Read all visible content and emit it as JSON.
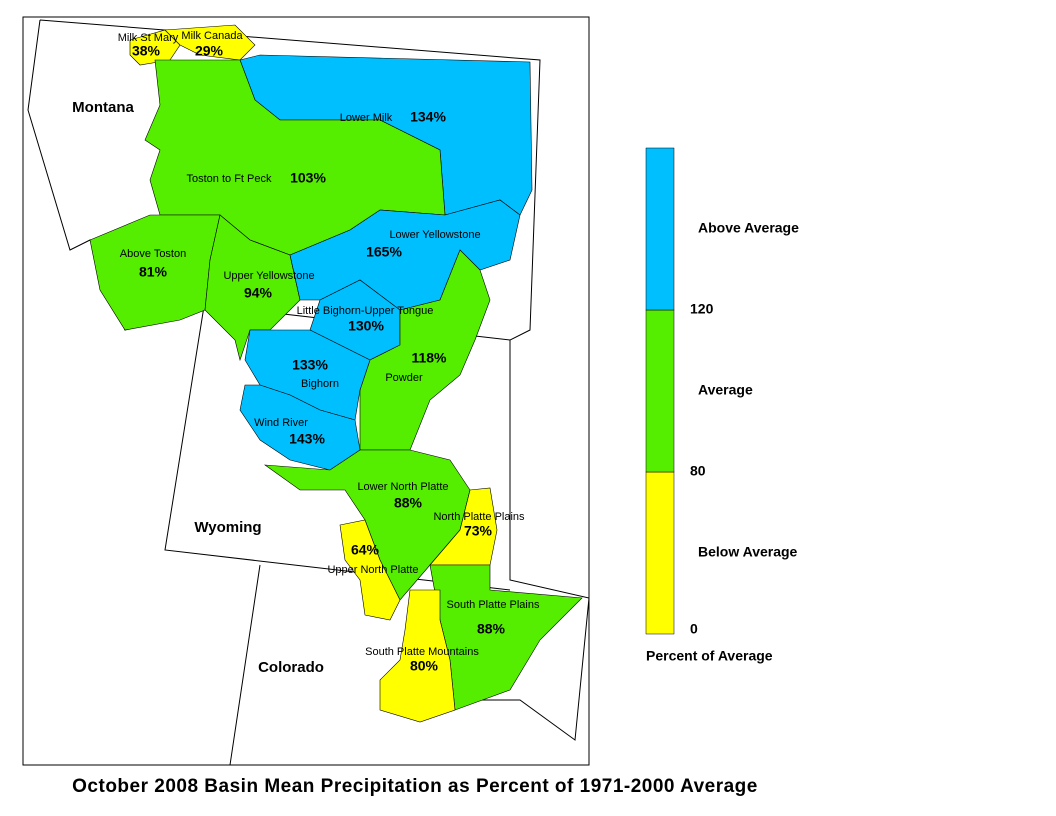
{
  "title": "October 2008 Basin Mean Precipitation as Percent of 1971-2000 Average",
  "states": [
    "Montana",
    "Wyoming",
    "Colorado"
  ],
  "basins": [
    {
      "name": "Milk St Mary",
      "value": 38,
      "value_label": "38%"
    },
    {
      "name": "Milk Canada",
      "value": 29,
      "value_label": "29%"
    },
    {
      "name": "Lower Milk",
      "value": 134,
      "value_label": "134%"
    },
    {
      "name": "Toston to Ft Peck",
      "value": 103,
      "value_label": "103%"
    },
    {
      "name": "Above Toston",
      "value": 81,
      "value_label": "81%"
    },
    {
      "name": "Upper Yellowstone",
      "value": 94,
      "value_label": "94%"
    },
    {
      "name": "Lower Yellowstone",
      "value": 165,
      "value_label": "165%"
    },
    {
      "name": "Little Bighorn-Upper Tongue",
      "value": 130,
      "value_label": "130%"
    },
    {
      "name": "Powder",
      "value": 118,
      "value_label": "118%"
    },
    {
      "name": "Bighorn",
      "value": 133,
      "value_label": "133%"
    },
    {
      "name": "Wind River",
      "value": 143,
      "value_label": "143%"
    },
    {
      "name": "Lower North Platte",
      "value": 88,
      "value_label": "88%"
    },
    {
      "name": "North Platte Plains",
      "value": 73,
      "value_label": "73%"
    },
    {
      "name": "Upper North Platte",
      "value": 64,
      "value_label": "64%"
    },
    {
      "name": "South Platte Plains",
      "value": 88,
      "value_label": "88%"
    },
    {
      "name": "South Platte Mountains",
      "value": 80,
      "value_label": "80%"
    }
  ],
  "legend": {
    "title": "Percent of Average",
    "items": [
      {
        "label": "Below Average",
        "color": "#ffff00"
      },
      {
        "label": "Average",
        "color": "#55ee00"
      },
      {
        "label": "Above Average",
        "color": "#00bfff"
      }
    ],
    "ticks": [
      0,
      80,
      120
    ]
  }
}
